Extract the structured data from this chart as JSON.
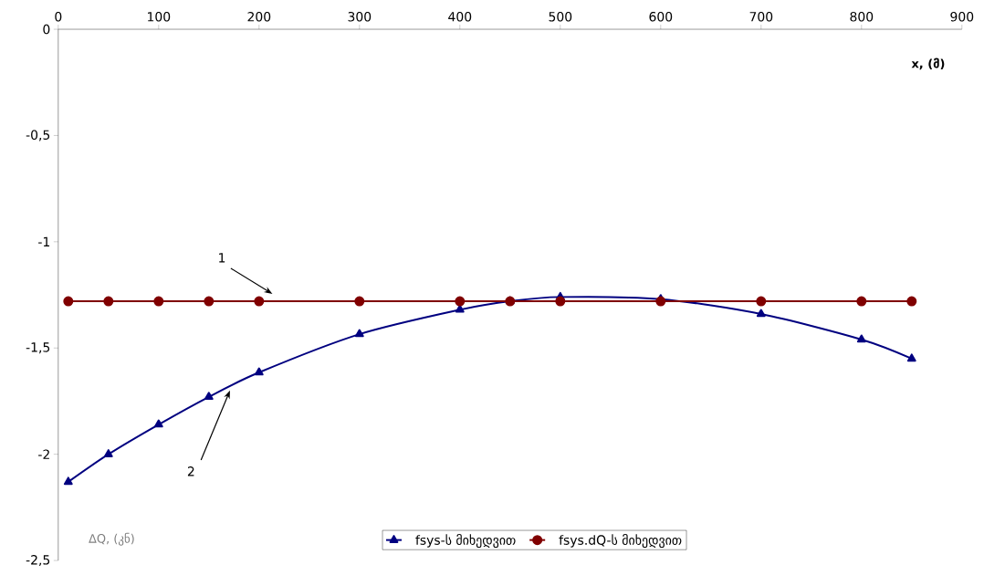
{
  "chart_data": {
    "type": "line",
    "xlabel": "x, (მ)",
    "ylabel": "ΔQ, (კნ)",
    "x": [
      10,
      50,
      100,
      150,
      200,
      300,
      400,
      450,
      500,
      600,
      700,
      800,
      850
    ],
    "series": [
      {
        "name": "fsys-ს მიხედვით",
        "color": "#000080",
        "marker": "triangle",
        "values": [
          -2.13,
          -2.0,
          -1.86,
          -1.73,
          -1.615,
          -1.435,
          -1.32,
          -1.28,
          -1.26,
          -1.27,
          -1.34,
          -1.46,
          -1.55
        ]
      },
      {
        "name": "fsys.dQ-ს მიხედვით",
        "color": "#800000",
        "marker": "circle",
        "values": [
          -1.28,
          -1.28,
          -1.28,
          -1.28,
          -1.28,
          -1.28,
          -1.28,
          -1.28,
          -1.28,
          -1.28,
          -1.28,
          -1.28,
          -1.28
        ]
      }
    ],
    "xlim": [
      0,
      900
    ],
    "xticks": [
      0,
      100,
      200,
      300,
      400,
      500,
      600,
      700,
      800,
      900
    ],
    "ylim": [
      -2.5,
      0
    ],
    "yticks": [
      {
        "value": -2.5,
        "label": "-2,5"
      },
      {
        "value": -2,
        "label": "-2"
      },
      {
        "value": -1.5,
        "label": "-1,5"
      },
      {
        "value": -1,
        "label": "-1"
      },
      {
        "value": -0.5,
        "label": "-0,5"
      },
      {
        "value": 0,
        "label": "0"
      }
    ],
    "annotations": [
      "1",
      "2"
    ],
    "legend": "bottom",
    "grid": false,
    "line_style": "solid"
  }
}
